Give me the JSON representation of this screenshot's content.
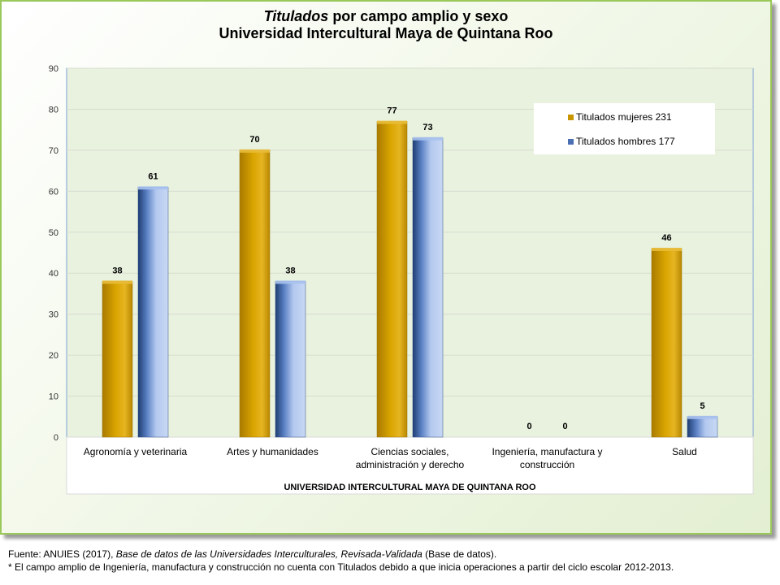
{
  "title": {
    "line1_italic": "Titulados",
    "line1_rest": " por campo amplio y sexo",
    "line2": "Universidad Intercultural Maya de Quintana Roo"
  },
  "chart_data": {
    "type": "bar",
    "categories": [
      [
        "Agronomía y veterinaria"
      ],
      [
        "Artes y humanidades"
      ],
      [
        "Ciencias sociales,",
        "administración y derecho"
      ],
      [
        "Ingeniería, manufactura y",
        "construcción"
      ],
      [
        "Salud"
      ]
    ],
    "series": [
      {
        "name": "Titulados mujeres 231",
        "values": [
          38,
          70,
          77,
          0,
          46
        ],
        "color": "#c99500"
      },
      {
        "name": "Titulados hombres 177",
        "values": [
          61,
          38,
          73,
          0,
          5
        ],
        "color": "#6f92d4"
      }
    ],
    "xlabel": "UNIVERSIDAD INTERCULTURAL MAYA DE QUINTANA ROO",
    "ylabel": "",
    "ylim": [
      0,
      90
    ],
    "yticks": [
      0,
      10,
      20,
      30,
      40,
      50,
      60,
      70,
      80,
      90
    ],
    "grid": true,
    "legend_position": "top-right"
  },
  "footer": {
    "source_prefix": "Fuente: ANUIES (2017), ",
    "source_italic": "Base de datos de las Universidades  Interculturales, Revisada-Validada",
    "source_suffix": "  (Base de datos).",
    "note": "* El campo amplio de Ingeniería,  manufactura  y construcción no cuenta con Titulados debido a que inicia operaciones  a partir del ciclo escolar 2012-2013."
  }
}
